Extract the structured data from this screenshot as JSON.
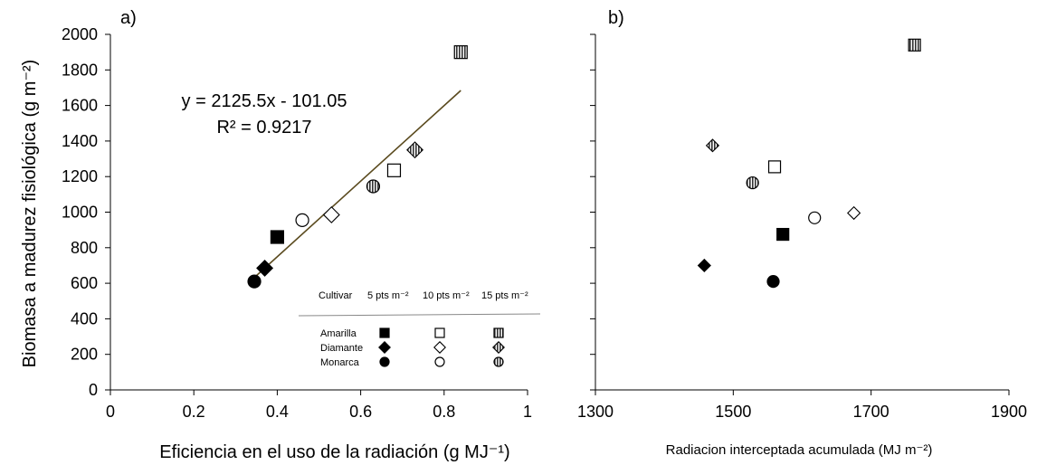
{
  "chart_data": [
    {
      "type": "scatter",
      "panel_label": "a)",
      "ylabel": "Biomasa a madurez fisiológica (g m⁻²)",
      "xlabel": "Eficiencia en el uso de la radiación (g MJ⁻¹)",
      "xlim": [
        0,
        1
      ],
      "ylim": [
        0,
        2000
      ],
      "x_ticks": [
        "0",
        "0.2",
        "0.4",
        "0.6",
        "0.8",
        "1"
      ],
      "y_ticks": [
        "0",
        "200",
        "400",
        "600",
        "800",
        "1000",
        "1200",
        "1400",
        "1600",
        "1800",
        "2000"
      ],
      "equation": "y = 2125.5x - 101.05",
      "r_squared": "R² = 0.9217",
      "trendline": {
        "slope": 2125.5,
        "intercept": -101.05,
        "x_range": [
          0.34,
          0.84
        ],
        "color": "#5a4a1e"
      },
      "legend_placement": "bottom-right",
      "points": [
        {
          "cultivar": "Amarilla",
          "density": "5 pts m-2",
          "marker": "square-filled",
          "x": 0.4,
          "y": 860
        },
        {
          "cultivar": "Amarilla",
          "density": "10 pts m-2",
          "marker": "square-open",
          "x": 0.68,
          "y": 1235
        },
        {
          "cultivar": "Amarilla",
          "density": "15 pts m-2",
          "marker": "square-hatched",
          "x": 0.84,
          "y": 1900
        },
        {
          "cultivar": "Diamante",
          "density": "5 pts m-2",
          "marker": "diamond-filled",
          "x": 0.37,
          "y": 685
        },
        {
          "cultivar": "Diamante",
          "density": "10 pts m-2",
          "marker": "diamond-open",
          "x": 0.53,
          "y": 985
        },
        {
          "cultivar": "Diamante",
          "density": "15 pts m-2",
          "marker": "diamond-hatched",
          "x": 0.73,
          "y": 1350
        },
        {
          "cultivar": "Monarca",
          "density": "5 pts m-2",
          "marker": "circle-filled",
          "x": 0.345,
          "y": 610
        },
        {
          "cultivar": "Monarca",
          "density": "10 pts m-2",
          "marker": "circle-open",
          "x": 0.46,
          "y": 955
        },
        {
          "cultivar": "Monarca",
          "density": "15 pts m-2",
          "marker": "circle-hatched",
          "x": 0.63,
          "y": 1145
        }
      ]
    },
    {
      "type": "scatter",
      "panel_label": "b)",
      "xlabel": "Radiacion interceptada acumulada (MJ m⁻²)",
      "xlim": [
        1300,
        1900
      ],
      "ylim": [
        0,
        2000
      ],
      "x_ticks": [
        "1300",
        "1500",
        "1700",
        "1900"
      ],
      "points": [
        {
          "cultivar": "Amarilla",
          "density": "5 pts m-2",
          "marker": "square-filled",
          "x": 1572,
          "y": 875
        },
        {
          "cultivar": "Amarilla",
          "density": "10 pts m-2",
          "marker": "square-open",
          "x": 1560,
          "y": 1255
        },
        {
          "cultivar": "Amarilla",
          "density": "15 pts m-2",
          "marker": "square-hatched",
          "x": 1763,
          "y": 1940
        },
        {
          "cultivar": "Diamante",
          "density": "5 pts m-2",
          "marker": "diamond-filled",
          "x": 1458,
          "y": 700
        },
        {
          "cultivar": "Diamante",
          "density": "10 pts m-2",
          "marker": "diamond-open",
          "x": 1675,
          "y": 995
        },
        {
          "cultivar": "Diamante",
          "density": "15 pts m-2",
          "marker": "diamond-hatched",
          "x": 1470,
          "y": 1375
        },
        {
          "cultivar": "Monarca",
          "density": "5 pts m-2",
          "marker": "circle-filled",
          "x": 1558,
          "y": 610
        },
        {
          "cultivar": "Monarca",
          "density": "10 pts m-2",
          "marker": "circle-open",
          "x": 1618,
          "y": 968
        },
        {
          "cultivar": "Monarca",
          "density": "15 pts m-2",
          "marker": "circle-hatched",
          "x": 1528,
          "y": 1165
        }
      ]
    }
  ],
  "legend": {
    "header_label": "Cultivar",
    "columns": [
      "5 pts m⁻²",
      "10 pts m⁻²",
      "15 pts m⁻²"
    ],
    "rows": [
      {
        "name": "Amarilla",
        "markers": [
          "square-filled",
          "square-open",
          "square-hatched"
        ]
      },
      {
        "name": "Diamante",
        "markers": [
          "diamond-filled",
          "diamond-open",
          "diamond-hatched"
        ]
      },
      {
        "name": "Monarca",
        "markers": [
          "circle-filled",
          "circle-open",
          "circle-hatched"
        ]
      }
    ]
  }
}
